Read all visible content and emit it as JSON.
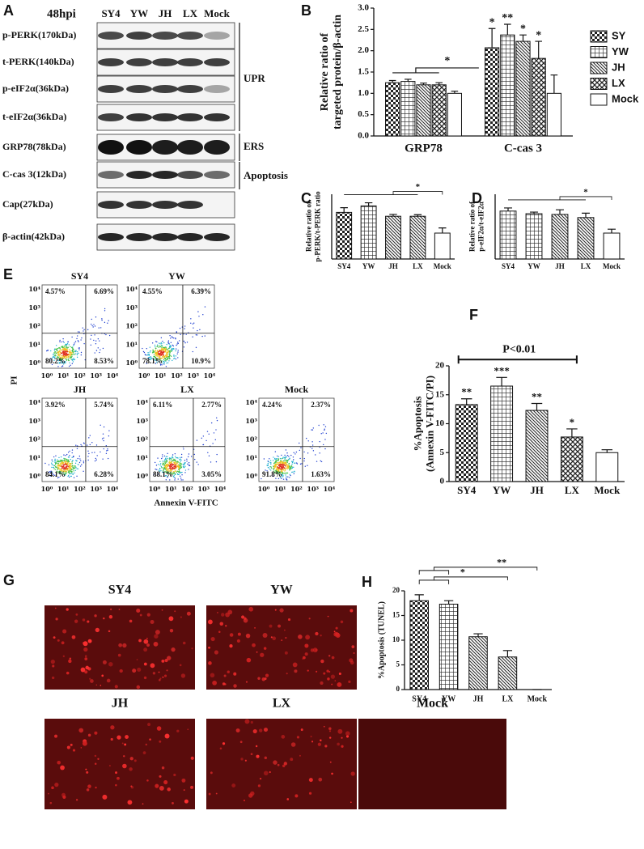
{
  "blot": {
    "panel": "A",
    "time": "48hpi",
    "lanes": [
      "SY4",
      "YW",
      "JH",
      "LX",
      "Mock"
    ],
    "rows": [
      "p-PERK(170kDa)",
      "t-PERK(140kDa)",
      "p-eIF2α(36kDa)",
      "t-eIF2α(36kDa)",
      "GRP78(78kDa)",
      "C-cas 3(12kDa)",
      "Cap(27kDa)",
      "β-actin(42kDa)"
    ],
    "groups": [
      "UPR",
      "ERS",
      "Apoptosis"
    ]
  },
  "flow": {
    "panel": "E",
    "ylabel": "PI",
    "xlabel": "Annexin V-FITC",
    "ticks": [
      "10⁰",
      "10¹",
      "10²",
      "10³",
      "10⁴"
    ],
    "plots": [
      {
        "name": "SY4",
        "quadrants": [
          "4.57%",
          "6.69%",
          "80.2%",
          "8.53%"
        ]
      },
      {
        "name": "YW",
        "quadrants": [
          "4.55%",
          "6.39%",
          "78.1%",
          "10.9%"
        ]
      },
      {
        "name": "JH",
        "quadrants": [
          "3.92%",
          "5.74%",
          "84.1%",
          "6.28%"
        ]
      },
      {
        "name": "LX",
        "quadrants": [
          "6.11%",
          "2.77%",
          "88.1%",
          "3.05%"
        ]
      },
      {
        "name": "Mock",
        "quadrants": [
          "4.24%",
          "2.37%",
          "91.8%",
          "1.63%"
        ]
      }
    ]
  },
  "tunel_images": {
    "panel": "G",
    "labels": [
      "SY4",
      "YW",
      "JH",
      "LX",
      "Mock"
    ]
  },
  "chart_data": [
    {
      "type": "bar",
      "panel": "B",
      "ylabel": [
        "Relative ratio of",
        "targeted protein/β-actin"
      ],
      "categories": [
        "GRP78",
        "C-cas 3"
      ],
      "series": [
        {
          "name": "SY",
          "pattern": "checker",
          "values": [
            1.25,
            2.07
          ],
          "errors": [
            0.05,
            0.45
          ],
          "labels": [
            null,
            "*"
          ]
        },
        {
          "name": "YW",
          "pattern": "grid",
          "values": [
            1.28,
            2.37
          ],
          "errors": [
            0.05,
            0.25
          ],
          "labels": [
            null,
            "**"
          ]
        },
        {
          "name": "JH",
          "pattern": "diagonal",
          "values": [
            1.2,
            2.22
          ],
          "errors": [
            0.04,
            0.15
          ],
          "labels": [
            null,
            "*"
          ]
        },
        {
          "name": "LX",
          "pattern": "crosshatch",
          "values": [
            1.2,
            1.82
          ],
          "errors": [
            0.05,
            0.4
          ],
          "labels": [
            null,
            "*"
          ]
        },
        {
          "name": "Mock",
          "pattern": "none",
          "values": [
            1.0,
            1.0
          ],
          "errors": [
            0.05,
            0.43
          ]
        }
      ],
      "brackets": [
        "*"
      ],
      "ylim": [
        0,
        3
      ],
      "yticks": [
        {
          "value": 0,
          "label": "0.0"
        },
        {
          "value": 0.5,
          "label": "0.5"
        },
        {
          "value": 1,
          "label": "1.0"
        },
        {
          "value": 1.5,
          "label": "1.5"
        },
        {
          "value": 2,
          "label": "2.0"
        },
        {
          "value": 2.5,
          "label": "2.5"
        },
        {
          "value": 3,
          "label": "3.0"
        }
      ]
    },
    {
      "type": "bar",
      "panel": "C",
      "ylabel": [
        "Relative ratio of",
        "p-PERK/t-PERK ratio"
      ],
      "categories": [
        "SY4",
        "YW",
        "JH",
        "LX",
        "Mock"
      ],
      "patterns": [
        "checker",
        "grid",
        "diagonal",
        "diagonal",
        "none"
      ],
      "values": [
        1.8,
        2.05,
        1.65,
        1.65,
        1.0
      ],
      "errors": [
        0.18,
        0.12,
        0.07,
        0.06,
        0.2
      ],
      "brackets": [
        "*"
      ],
      "ylim": [
        0,
        2.5
      ]
    },
    {
      "type": "bar",
      "panel": "D",
      "ylabel": [
        "Relative ratio of",
        "p-eIF2α/t-eIF2α"
      ],
      "categories": [
        "SY4",
        "YW",
        "JH",
        "LX",
        "Mock"
      ],
      "patterns": [
        "grid",
        "grid",
        "diagonal",
        "diagonal",
        "none"
      ],
      "values": [
        1.85,
        1.75,
        1.72,
        1.6,
        1.0
      ],
      "errors": [
        0.12,
        0.06,
        0.18,
        0.17,
        0.15
      ],
      "brackets": [
        "*"
      ],
      "ylim": [
        0,
        2.5
      ]
    },
    {
      "type": "bar",
      "panel": "F",
      "ylabel": [
        "%Apoptosis",
        "(Annexin V-FITC/PI)"
      ],
      "categories": [
        "SY4",
        "YW",
        "JH",
        "LX",
        "Mock"
      ],
      "patterns": [
        "checker",
        "grid",
        "diagonal",
        "crosshatch",
        "none"
      ],
      "values": [
        13.3,
        16.5,
        12.3,
        7.7,
        5.0
      ],
      "errors": [
        1.0,
        1.5,
        1.2,
        1.4,
        0.5
      ],
      "bar_labels": [
        "**",
        "***",
        "**",
        "*",
        null
      ],
      "brackets": [
        "P<0.01"
      ],
      "ylim": [
        0,
        20
      ],
      "yticks": [
        0,
        5,
        10,
        15,
        20
      ]
    },
    {
      "type": "bar",
      "panel": "H",
      "ylabel": [
        "%Apoptosis (TUNEL)"
      ],
      "categories": [
        "SY4",
        "YW",
        "JH",
        "LX",
        "Mock"
      ],
      "patterns": [
        "checker",
        "grid",
        "diagonal",
        "diagonal",
        "none"
      ],
      "values": [
        18,
        17.3,
        10.7,
        6.6,
        0
      ],
      "errors": [
        1.2,
        0.7,
        0.6,
        1.3,
        0
      ],
      "brackets": [
        "**",
        "*"
      ],
      "ylim": [
        0,
        20
      ],
      "yticks": [
        0,
        5,
        10,
        15,
        20
      ]
    }
  ]
}
